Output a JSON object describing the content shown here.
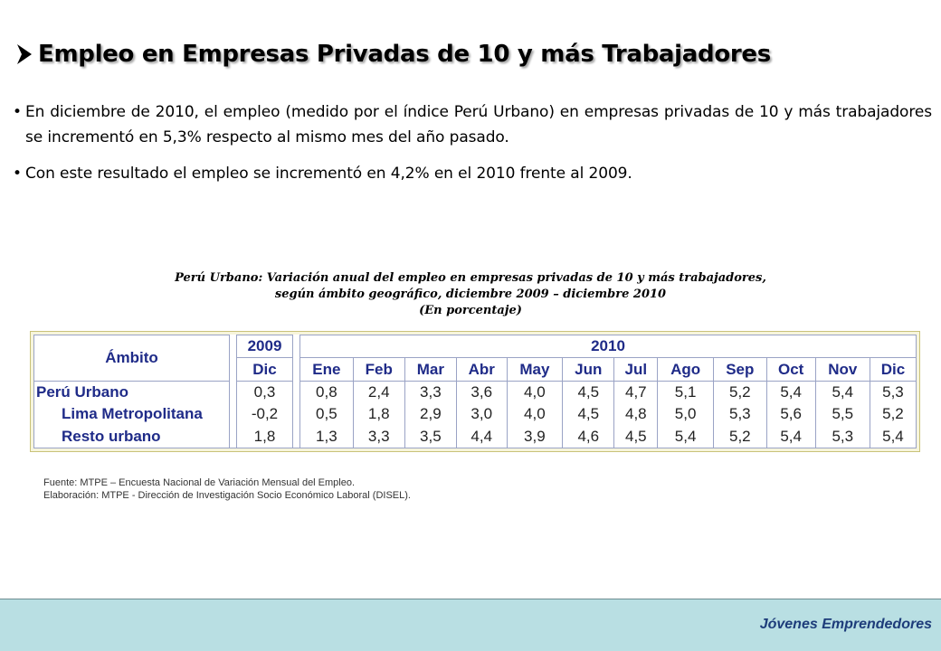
{
  "title": "Empleo en Empresas Privadas de 10 y más Trabajadores",
  "bullets": [
    "En diciembre de 2010, el empleo (medido por el índice Perú Urbano) en empresas privadas de 10 y más trabajadores se incrementó en 5,3% respecto al mismo mes del año pasado.",
    "Con este resultado el empleo se incrementó en 4,2% en el 2010 frente al 2009."
  ],
  "table": {
    "caption_line1": "Perú Urbano: Variación anual del empleo en empresas privadas de 10 y más trabajadores,",
    "caption_line2": "según ámbito geográfico, diciembre 2009 – diciembre 2010",
    "caption_line3": "(En porcentaje)",
    "ambito_label": "Ámbito",
    "year_2009": "2009",
    "year_2010": "2010",
    "months": [
      "Dic",
      "Ene",
      "Feb",
      "Mar",
      "Abr",
      "May",
      "Jun",
      "Jul",
      "Ago",
      "Sep",
      "Oct",
      "Nov",
      "Dic"
    ],
    "rows": [
      {
        "label": "Perú Urbano",
        "values": [
          "0,3",
          "0,8",
          "2,4",
          "3,3",
          "3,6",
          "4,0",
          "4,5",
          "4,7",
          "5,1",
          "5,2",
          "5,4",
          "5,4",
          "5,3"
        ]
      },
      {
        "label": "Lima Metropolitana",
        "values": [
          "-0,2",
          "0,5",
          "1,8",
          "2,9",
          "3,0",
          "4,0",
          "4,5",
          "4,8",
          "5,0",
          "5,3",
          "5,6",
          "5,5",
          "5,2"
        ]
      },
      {
        "label": "Resto urbano",
        "values": [
          "1,8",
          "1,3",
          "3,3",
          "3,5",
          "4,4",
          "3,9",
          "4,6",
          "4,5",
          "5,4",
          "5,2",
          "5,4",
          "5,3",
          "5,4"
        ]
      }
    ]
  },
  "notes": {
    "source": "Fuente: MTPE – Encuesta Nacional de Variación Mensual del Empleo.",
    "elaboration": "Elaboración: MTPE - Dirección de Investigación Socio Económico Laboral (DISEL)."
  },
  "footer": {
    "brand": "Jóvenes Emprendedores"
  },
  "colors": {
    "table_text": "#1f2b88",
    "footer_bg": "#b9dfe3",
    "brand_text": "#1d3c7a"
  }
}
